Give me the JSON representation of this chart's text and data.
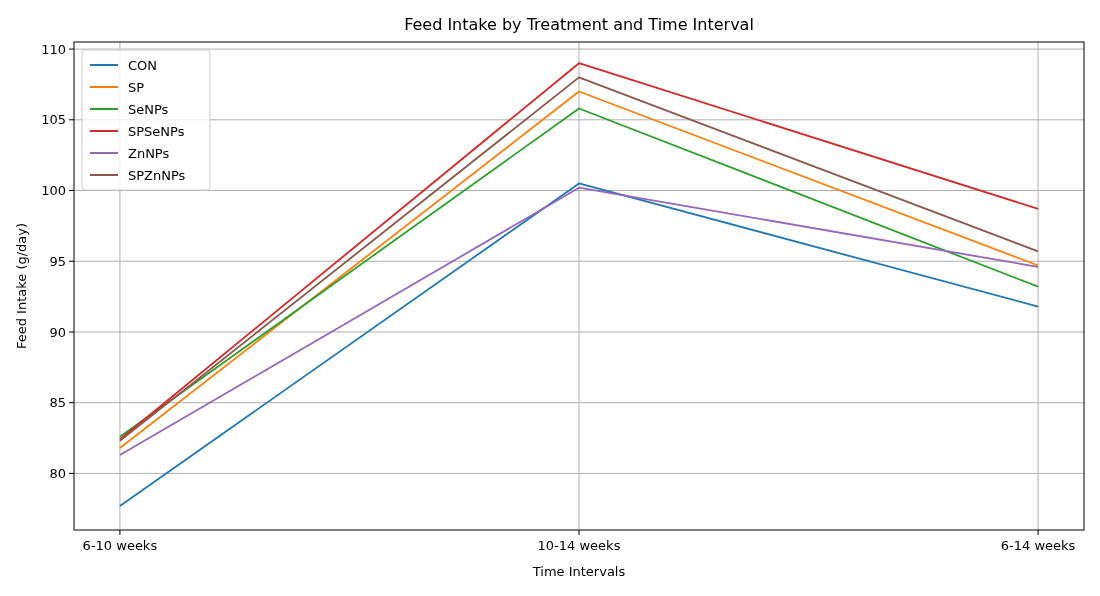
{
  "chart_data": {
    "type": "line",
    "title": "Feed Intake by Treatment and Time Interval",
    "xlabel": "Time Intervals",
    "ylabel": "Feed Intake (g/day)",
    "categories": [
      "6-10 weeks",
      "10-14 weeks",
      "6-14 weeks"
    ],
    "ylim": [
      76,
      110.5
    ],
    "yticks": [
      80,
      85,
      90,
      95,
      100,
      105,
      110
    ],
    "grid": true,
    "legend": "top left",
    "series": [
      {
        "name": "CON",
        "color": "#1f77b4",
        "values": [
          77.7,
          100.5,
          91.8
        ]
      },
      {
        "name": "SP",
        "color": "#ff7f0e",
        "values": [
          81.8,
          107.0,
          94.7
        ]
      },
      {
        "name": "SeNPs",
        "color": "#2ca02c",
        "values": [
          82.6,
          105.8,
          93.2
        ]
      },
      {
        "name": "SPSeNPs",
        "color": "#d62728",
        "values": [
          82.4,
          109.0,
          98.7
        ]
      },
      {
        "name": "ZnNPs",
        "color": "#9467bd",
        "values": [
          81.3,
          100.2,
          94.6
        ]
      },
      {
        "name": "SPZnNPs",
        "color": "#8c564b",
        "values": [
          82.3,
          108.0,
          95.7
        ]
      }
    ]
  }
}
